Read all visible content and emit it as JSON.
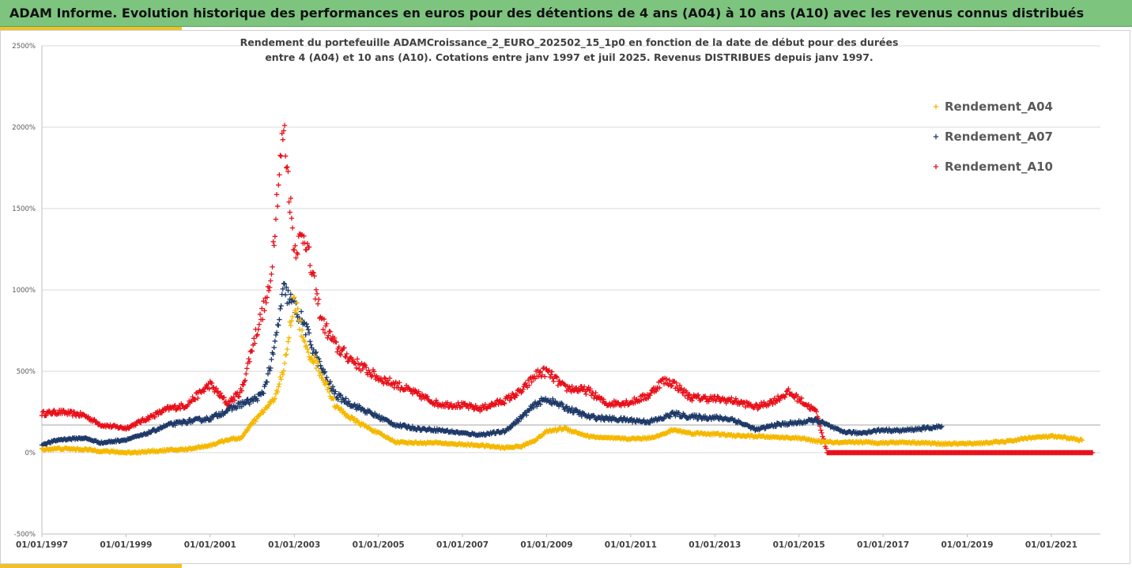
{
  "banner": {
    "title": "ADAM Informe. Evolution historique des performances en euros pour des détentions de 4 ans (A04) à 10 ans (A10) avec les revenus connus distribués"
  },
  "colors": {
    "banner": "#7dc47f",
    "accent": "#f0c22a",
    "A04": "#f5b800",
    "A07": "#1f3a68",
    "A10": "#e8101a"
  },
  "chart_data": {
    "type": "scatter",
    "title_lines": [
      "Rendement du portefeuille ADAMCroissance_2_EURO_202502_15_1p0  en fonction de la date de début pour des durées",
      "entre 4 (A04) et 10 ans (A10). Cotations entre janv 1997 et juil 2025. Revenus DISTRIBUES depuis janv 1997."
    ],
    "xlabel": "",
    "ylabel": "",
    "x_range": [
      "1997-01-01",
      "2022-03-01"
    ],
    "ylim": [
      -500,
      2500
    ],
    "y_ticks": [
      -500,
      0,
      500,
      1000,
      1500,
      2000,
      2500
    ],
    "y_tick_labels": [
      "-500%",
      "0%",
      "500%",
      "1000%",
      "1500%",
      "2000%",
      "2500%"
    ],
    "x_tick_labels": [
      "01/01/1997",
      "01/01/1999",
      "01/01/2001",
      "01/01/2003",
      "01/01/2005",
      "01/01/2007",
      "01/01/2009",
      "01/01/2011",
      "01/01/2013",
      "01/01/2015",
      "01/01/2017",
      "01/01/2019",
      "01/01/2021"
    ],
    "x_tick_years": [
      1997,
      1999,
      2001,
      2003,
      2005,
      2007,
      2009,
      2011,
      2013,
      2015,
      2017,
      2019,
      2021
    ],
    "grid": true,
    "legend_position": "top-right",
    "marker": "+",
    "reference_line_y": 170,
    "series": [
      {
        "name": "Rendement_A04",
        "color": "#f5b800",
        "x": [
          "1997-01",
          "1997-06",
          "1998-01",
          "1998-06",
          "1999-01",
          "1999-06",
          "2000-01",
          "2000-06",
          "2001-01",
          "2001-06",
          "2001-10",
          "2002-01",
          "2002-04",
          "2002-07",
          "2002-10",
          "2003-01",
          "2003-04",
          "2003-07",
          "2003-10",
          "2004-01",
          "2004-06",
          "2005-01",
          "2005-06",
          "2006-01",
          "2006-06",
          "2007-01",
          "2007-06",
          "2008-01",
          "2008-06",
          "2008-10",
          "2009-01",
          "2009-06",
          "2010-01",
          "2010-06",
          "2011-01",
          "2011-06",
          "2011-10",
          "2012-01",
          "2012-06",
          "2013-01",
          "2013-06",
          "2014-01",
          "2014-06",
          "2015-01",
          "2015-06",
          "2016-01",
          "2016-06",
          "2017-01",
          "2017-06",
          "2018-01",
          "2018-06",
          "2019-01",
          "2019-06",
          "2020-01",
          "2020-06",
          "2021-01",
          "2021-06",
          "2021-10"
        ],
        "y": [
          20,
          25,
          20,
          10,
          0,
          5,
          15,
          20,
          45,
          80,
          90,
          180,
          250,
          320,
          500,
          950,
          650,
          560,
          420,
          280,
          200,
          120,
          65,
          60,
          60,
          50,
          45,
          30,
          40,
          80,
          130,
          150,
          100,
          90,
          85,
          90,
          110,
          140,
          120,
          115,
          105,
          100,
          95,
          90,
          70,
          60,
          65,
          60,
          65,
          60,
          55,
          55,
          60,
          70,
          90,
          100,
          90,
          75
        ]
      },
      {
        "name": "Rendement_A07",
        "color": "#1f3a68",
        "x": [
          "1997-01",
          "1997-06",
          "1998-01",
          "1998-06",
          "1999-01",
          "1999-06",
          "2000-01",
          "2000-06",
          "2001-01",
          "2001-06",
          "2001-10",
          "2002-01",
          "2002-04",
          "2002-07",
          "2002-10",
          "2003-01",
          "2003-04",
          "2003-07",
          "2003-10",
          "2004-01",
          "2004-06",
          "2005-01",
          "2005-06",
          "2006-01",
          "2006-06",
          "2007-01",
          "2007-06",
          "2008-01",
          "2008-06",
          "2008-10",
          "2009-01",
          "2009-06",
          "2010-01",
          "2010-06",
          "2011-01",
          "2011-06",
          "2011-10",
          "2012-01",
          "2012-06",
          "2013-01",
          "2013-06",
          "2014-01",
          "2014-06",
          "2015-01",
          "2015-06",
          "2016-01",
          "2016-06",
          "2017-01",
          "2017-06",
          "2018-01",
          "2018-06"
        ],
        "y": [
          50,
          80,
          90,
          60,
          80,
          110,
          170,
          190,
          210,
          260,
          300,
          320,
          360,
          600,
          1000,
          900,
          780,
          600,
          460,
          350,
          290,
          220,
          170,
          145,
          140,
          120,
          110,
          130,
          220,
          300,
          330,
          280,
          220,
          210,
          200,
          190,
          210,
          240,
          220,
          215,
          205,
          140,
          170,
          185,
          200,
          130,
          120,
          140,
          135,
          150,
          160
        ]
      },
      {
        "name": "Rendement_A10",
        "color": "#e8101a",
        "x": [
          "1997-01",
          "1997-06",
          "1998-01",
          "1998-06",
          "1999-01",
          "1999-06",
          "2000-01",
          "2000-06",
          "2001-01",
          "2001-06",
          "2001-10",
          "2002-01",
          "2002-03",
          "2002-06",
          "2002-08",
          "2002-10",
          "2002-12",
          "2003-01",
          "2003-04",
          "2003-06",
          "2003-09",
          "2004-01",
          "2004-06",
          "2005-01",
          "2005-06",
          "2006-01",
          "2006-06",
          "2007-01",
          "2007-06",
          "2008-01",
          "2008-06",
          "2008-10",
          "2009-01",
          "2009-06",
          "2010-01",
          "2010-06",
          "2011-01",
          "2011-06",
          "2011-10",
          "2012-01",
          "2012-06",
          "2013-01",
          "2013-06",
          "2014-01",
          "2014-06",
          "2014-10",
          "2015-01",
          "2015-06",
          "2015-09",
          "2016-01",
          "2017-01",
          "2018-01",
          "2019-01",
          "2020-01",
          "2021-01",
          "2022-01"
        ],
        "y": [
          240,
          250,
          230,
          170,
          150,
          200,
          270,
          290,
          420,
          300,
          380,
          650,
          800,
          1000,
          1550,
          2000,
          1500,
          1250,
          1350,
          1100,
          800,
          650,
          560,
          460,
          420,
          350,
          300,
          290,
          270,
          320,
          380,
          480,
          500,
          400,
          380,
          300,
          310,
          350,
          440,
          430,
          340,
          330,
          320,
          280,
          320,
          370,
          330,
          250,
          0,
          0,
          0,
          0,
          0,
          0,
          0,
          0
        ]
      }
    ]
  }
}
